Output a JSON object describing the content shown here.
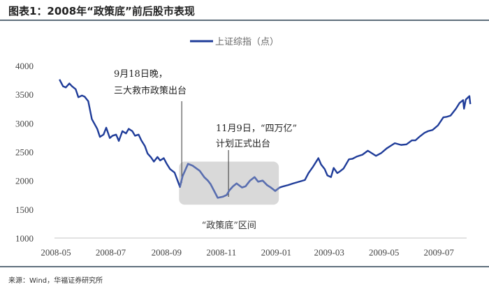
{
  "header": {
    "title": "图表1：2008年“政策底”前后股市表现"
  },
  "footer": {
    "source": "来源：Wind，华福证券研究所"
  },
  "colors": {
    "line": "#1f3c99",
    "line_in_band": "#5a6fb0",
    "band": "#d9d9d9",
    "axis": "#d9d9d9",
    "text": "#333333"
  },
  "chart_data": {
    "type": "line",
    "title": "",
    "xlabel": "",
    "ylabel": "",
    "legend": {
      "position": "top-center",
      "entries": [
        "上证综指（点）"
      ]
    },
    "ylim": [
      1000,
      4000
    ],
    "yticks": [
      1000,
      1500,
      2000,
      2500,
      3000,
      3500,
      4000
    ],
    "xticks": [
      "2008-05",
      "2008-07",
      "2008-09",
      "2008-11",
      "2009-01",
      "2009-03",
      "2009-05",
      "2009-07"
    ],
    "grid": false,
    "series": [
      {
        "name": "上证综指（点）",
        "points": [
          [
            "2008-05-05",
            3760
          ],
          [
            "2008-05-09",
            3640
          ],
          [
            "2008-05-12",
            3620
          ],
          [
            "2008-05-16",
            3690
          ],
          [
            "2008-05-19",
            3640
          ],
          [
            "2008-05-23",
            3590
          ],
          [
            "2008-05-26",
            3450
          ],
          [
            "2008-05-30",
            3480
          ],
          [
            "2008-06-02",
            3460
          ],
          [
            "2008-06-06",
            3380
          ],
          [
            "2008-06-10",
            3070
          ],
          [
            "2008-06-16",
            2900
          ],
          [
            "2008-06-19",
            2760
          ],
          [
            "2008-06-23",
            2800
          ],
          [
            "2008-06-26",
            2920
          ],
          [
            "2008-06-30",
            2740
          ],
          [
            "2008-07-03",
            2780
          ],
          [
            "2008-07-07",
            2800
          ],
          [
            "2008-07-10",
            2690
          ],
          [
            "2008-07-14",
            2860
          ],
          [
            "2008-07-18",
            2820
          ],
          [
            "2008-07-21",
            2900
          ],
          [
            "2008-07-25",
            2860
          ],
          [
            "2008-07-28",
            2780
          ],
          [
            "2008-08-01",
            2800
          ],
          [
            "2008-08-04",
            2700
          ],
          [
            "2008-08-08",
            2600
          ],
          [
            "2008-08-11",
            2470
          ],
          [
            "2008-08-15",
            2400
          ],
          [
            "2008-08-18",
            2330
          ],
          [
            "2008-08-22",
            2410
          ],
          [
            "2008-08-25",
            2350
          ],
          [
            "2008-08-29",
            2390
          ],
          [
            "2008-09-01",
            2300
          ],
          [
            "2008-09-05",
            2200
          ],
          [
            "2008-09-10",
            2140
          ],
          [
            "2008-09-16",
            1890
          ],
          [
            "2008-09-19",
            2080
          ],
          [
            "2008-09-25",
            2290
          ],
          [
            "2008-09-30",
            2260
          ],
          [
            "2008-10-08",
            2170
          ],
          [
            "2008-10-13",
            2060
          ],
          [
            "2008-10-17",
            2000
          ],
          [
            "2008-10-20",
            1940
          ],
          [
            "2008-10-24",
            1820
          ],
          [
            "2008-10-28",
            1700
          ],
          [
            "2008-11-03",
            1720
          ],
          [
            "2008-11-07",
            1750
          ],
          [
            "2008-11-10",
            1830
          ],
          [
            "2008-11-14",
            1900
          ],
          [
            "2008-11-18",
            1950
          ],
          [
            "2008-11-24",
            1880
          ],
          [
            "2008-11-28",
            1900
          ],
          [
            "2008-12-03",
            2000
          ],
          [
            "2008-12-08",
            2060
          ],
          [
            "2008-12-12",
            1980
          ],
          [
            "2008-12-17",
            2000
          ],
          [
            "2008-12-22",
            1920
          ],
          [
            "2008-12-26",
            1880
          ],
          [
            "2008-12-31",
            1820
          ],
          [
            "2009-01-05",
            1880
          ],
          [
            "2009-01-09",
            1900
          ],
          [
            "2009-01-14",
            1920
          ],
          [
            "2009-01-20",
            1950
          ],
          [
            "2009-02-02",
            2010
          ],
          [
            "2009-02-06",
            2130
          ],
          [
            "2009-02-11",
            2240
          ],
          [
            "2009-02-17",
            2390
          ],
          [
            "2009-02-20",
            2280
          ],
          [
            "2009-02-24",
            2200
          ],
          [
            "2009-02-27",
            2090
          ],
          [
            "2009-03-03",
            2060
          ],
          [
            "2009-03-06",
            2220
          ],
          [
            "2009-03-10",
            2130
          ],
          [
            "2009-03-13",
            2160
          ],
          [
            "2009-03-17",
            2210
          ],
          [
            "2009-03-23",
            2370
          ],
          [
            "2009-03-27",
            2380
          ],
          [
            "2009-04-01",
            2420
          ],
          [
            "2009-04-07",
            2450
          ],
          [
            "2009-04-13",
            2520
          ],
          [
            "2009-04-17",
            2480
          ],
          [
            "2009-04-22",
            2430
          ],
          [
            "2009-04-28",
            2480
          ],
          [
            "2009-05-04",
            2560
          ],
          [
            "2009-05-08",
            2600
          ],
          [
            "2009-05-13",
            2650
          ],
          [
            "2009-05-20",
            2620
          ],
          [
            "2009-05-26",
            2630
          ],
          [
            "2009-06-01",
            2700
          ],
          [
            "2009-06-05",
            2700
          ],
          [
            "2009-06-10",
            2770
          ],
          [
            "2009-06-15",
            2830
          ],
          [
            "2009-06-19",
            2860
          ],
          [
            "2009-06-24",
            2880
          ],
          [
            "2009-06-30",
            2960
          ],
          [
            "2009-07-06",
            3100
          ],
          [
            "2009-07-10",
            3110
          ],
          [
            "2009-07-14",
            3130
          ],
          [
            "2009-07-20",
            3250
          ],
          [
            "2009-07-24",
            3350
          ],
          [
            "2009-07-28",
            3400
          ],
          [
            "2009-07-29",
            3250
          ],
          [
            "2009-07-31",
            3410
          ],
          [
            "2009-08-04",
            3470
          ],
          [
            "2009-08-05",
            3330
          ]
        ]
      }
    ],
    "band": {
      "x": [
        "2008-09-15",
        "2009-01-04"
      ],
      "y": [
        1580,
        2330
      ],
      "label": "“政策底”区间"
    },
    "annotations": [
      {
        "date": "2008-09-18",
        "lines": [
          "9月18日晚，",
          "三大救市政策出台"
        ]
      },
      {
        "date": "2008-11-09",
        "lines": [
          "11月9日，“四万亿”",
          "计划正式出台"
        ]
      }
    ]
  }
}
